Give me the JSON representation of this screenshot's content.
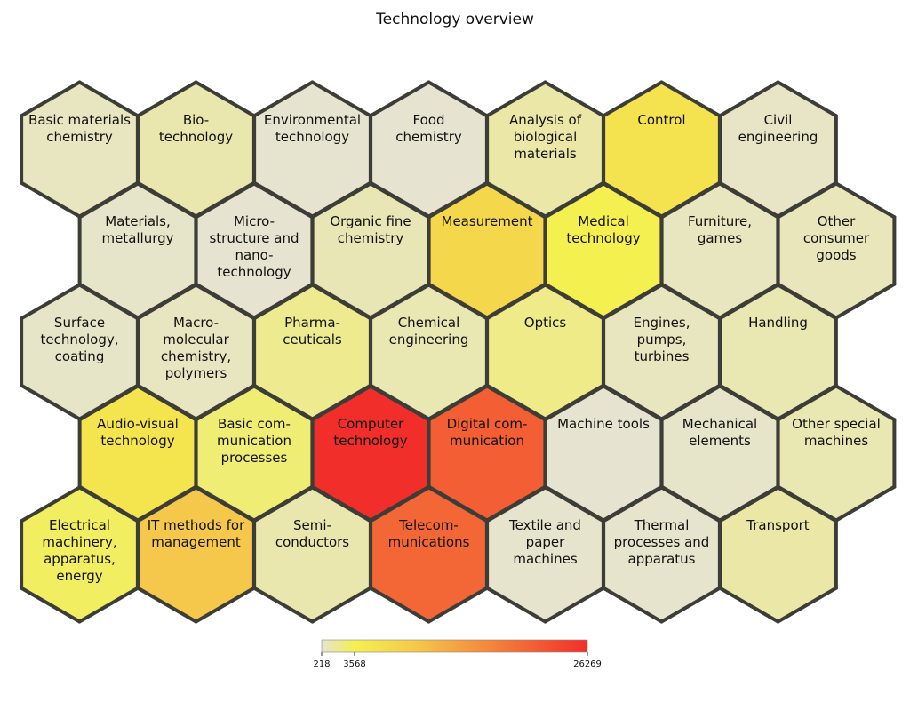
{
  "chart_data": {
    "type": "heatmap",
    "layout": "hexagonal-grid",
    "title": "Technology overview",
    "colorbar": {
      "min": 218,
      "max": 26269,
      "ticks": [
        218,
        3568,
        26269
      ],
      "colors": [
        "#e6e4d0",
        "#f4f050",
        "#f5c94a",
        "#f22e2a"
      ]
    },
    "cells": [
      {
        "label": "Basic materials chemistry",
        "lines": [
          "Basic materials",
          "chemistry"
        ],
        "col": 0,
        "row": 0,
        "value": 600,
        "group": 1
      },
      {
        "label": "Bio-technology",
        "lines": [
          "Bio-",
          "technology"
        ],
        "col": 1,
        "row": 0,
        "value": 1100,
        "group": 1
      },
      {
        "label": "Environmental technology",
        "lines": [
          "Environmental",
          "technology"
        ],
        "col": 2,
        "row": 0,
        "value": 250,
        "group": 1
      },
      {
        "label": "Food chemistry",
        "lines": [
          "Food",
          "chemistry"
        ],
        "col": 3,
        "row": 0,
        "value": 230,
        "group": 1
      },
      {
        "label": "Analysis of biological materials",
        "lines": [
          "Analysis of",
          "biological",
          "materials"
        ],
        "col": 4,
        "row": 0,
        "value": 1300,
        "group": 2
      },
      {
        "label": "Control",
        "lines": [
          "Control"
        ],
        "col": 5,
        "row": 0,
        "value": 5600,
        "group": 2
      },
      {
        "label": "Civil engineering",
        "lines": [
          "Civil",
          "engineering"
        ],
        "col": 6,
        "row": 0,
        "value": 500,
        "group": 4
      },
      {
        "label": "Materials, metallurgy",
        "lines": [
          "Materials,",
          "metallurgy"
        ],
        "col": 0,
        "row": 1,
        "value": 400,
        "group": 1
      },
      {
        "label": "Micro-structure and nano-technology",
        "lines": [
          "Micro-",
          "structure and",
          "nano-",
          "technology"
        ],
        "col": 1,
        "row": 1,
        "value": 218,
        "group": 1
      },
      {
        "label": "Organic fine chemistry",
        "lines": [
          "Organic fine",
          "chemistry"
        ],
        "col": 2,
        "row": 1,
        "value": 900,
        "group": 1
      },
      {
        "label": "Measurement",
        "lines": [
          "Measurement"
        ],
        "col": 3,
        "row": 1,
        "value": 7200,
        "group": 2
      },
      {
        "label": "Medical technology",
        "lines": [
          "Medical",
          "technology"
        ],
        "col": 4,
        "row": 1,
        "value": 3600,
        "group": 2
      },
      {
        "label": "Furniture, games",
        "lines": [
          "Furniture,",
          "games"
        ],
        "col": 5,
        "row": 1,
        "value": 700,
        "group": 4
      },
      {
        "label": "Other consumer goods",
        "lines": [
          "Other",
          "consumer",
          "goods"
        ],
        "col": 6,
        "row": 1,
        "value": 800,
        "group": 4
      },
      {
        "label": "Surface technology, coating",
        "lines": [
          "Surface",
          "technology,",
          "coating"
        ],
        "col": 0,
        "row": 2,
        "value": 450,
        "group": 1
      },
      {
        "label": "Macro-molecular chemistry, polymers",
        "lines": [
          "Macro-",
          "molecular",
          "chemistry,",
          "polymers"
        ],
        "col": 1,
        "row": 2,
        "value": 600,
        "group": 1
      },
      {
        "label": "Pharma-ceuticals",
        "lines": [
          "Pharma-",
          "ceuticals"
        ],
        "col": 2,
        "row": 2,
        "value": 1900,
        "group": 1
      },
      {
        "label": "Chemical engineering",
        "lines": [
          "Chemical",
          "engineering"
        ],
        "col": 3,
        "row": 2,
        "value": 1000,
        "group": 1
      },
      {
        "label": "Optics",
        "lines": [
          "Optics"
        ],
        "col": 4,
        "row": 2,
        "value": 2100,
        "group": 2
      },
      {
        "label": "Engines, pumps, turbines",
        "lines": [
          "Engines,",
          "pumps,",
          "turbines"
        ],
        "col": 5,
        "row": 2,
        "value": 700,
        "group": 3
      },
      {
        "label": "Handling",
        "lines": [
          "Handling"
        ],
        "col": 6,
        "row": 2,
        "value": 1000,
        "group": 3
      },
      {
        "label": "Audio-visual technology",
        "lines": [
          "Audio-visual",
          "technology"
        ],
        "col": 0,
        "row": 3,
        "value": 5200,
        "group": 0
      },
      {
        "label": "Basic com-munication processes",
        "lines": [
          "Basic com-",
          "munication",
          "processes"
        ],
        "col": 1,
        "row": 3,
        "value": 2600,
        "group": 0
      },
      {
        "label": "Computer technology",
        "lines": [
          "Computer",
          "technology"
        ],
        "col": 2,
        "row": 3,
        "value": 26269,
        "group": 0
      },
      {
        "label": "Digital com-munication",
        "lines": [
          "Digital com-",
          "munication"
        ],
        "col": 3,
        "row": 3,
        "value": 21000,
        "group": 0
      },
      {
        "label": "Machine tools",
        "lines": [
          "Machine tools"
        ],
        "col": 4,
        "row": 3,
        "value": 230,
        "group": 3
      },
      {
        "label": "Mechanical elements",
        "lines": [
          "Mechanical",
          "elements"
        ],
        "col": 5,
        "row": 3,
        "value": 400,
        "group": 3
      },
      {
        "label": "Other special machines",
        "lines": [
          "Other special",
          "machines"
        ],
        "col": 6,
        "row": 3,
        "value": 1000,
        "group": 3
      },
      {
        "label": "Electrical machinery, apparatus, energy",
        "lines": [
          "Electrical",
          "machinery,",
          "apparatus,",
          "energy"
        ],
        "col": 0,
        "row": 4,
        "value": 3100,
        "group": 0
      },
      {
        "label": "IT methods for management",
        "lines": [
          "IT methods for",
          "management"
        ],
        "col": 1,
        "row": 4,
        "value": 9500,
        "group": 0
      },
      {
        "label": "Semi-conductors",
        "lines": [
          "Semi-",
          "conductors"
        ],
        "col": 2,
        "row": 4,
        "value": 1100,
        "group": 0
      },
      {
        "label": "Telecom-munications",
        "lines": [
          "Telecom-",
          "munications"
        ],
        "col": 3,
        "row": 4,
        "value": 20000,
        "group": 0
      },
      {
        "label": "Textile and paper machines",
        "lines": [
          "Textile and",
          "paper",
          "machines"
        ],
        "col": 4,
        "row": 4,
        "value": 300,
        "group": 3
      },
      {
        "label": "Thermal processes and apparatus",
        "lines": [
          "Thermal",
          "processes and",
          "apparatus"
        ],
        "col": 5,
        "row": 4,
        "value": 300,
        "group": 3
      },
      {
        "label": "Transport",
        "lines": [
          "Transport"
        ],
        "col": 6,
        "row": 4,
        "value": 1300,
        "group": 3
      }
    ]
  }
}
